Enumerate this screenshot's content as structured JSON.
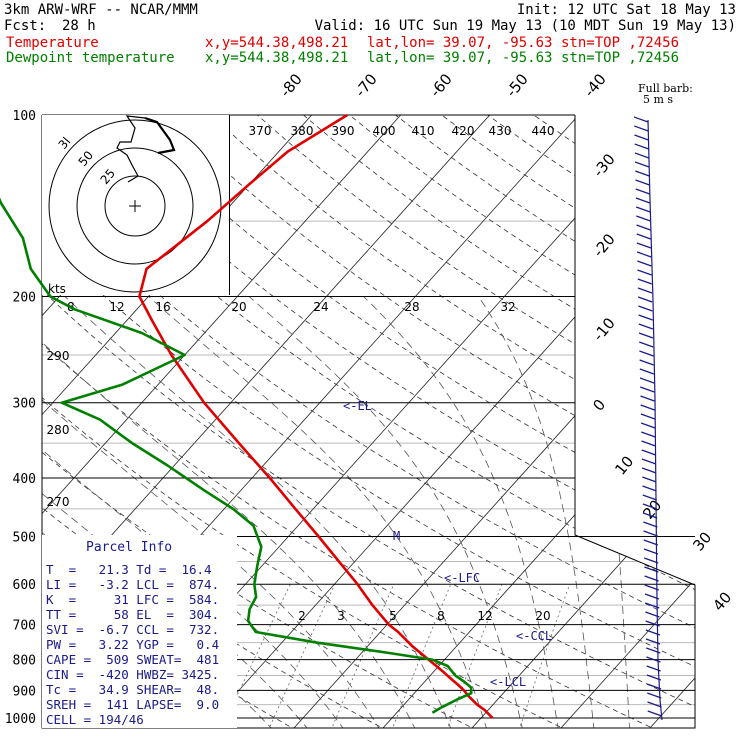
{
  "header": {
    "model": "3km ARW-WRF -- NCAR/MMM",
    "init": "Init: 12 UTC Sat 18 May 13",
    "fcst_label": "Fcst:",
    "fcst_value": "28 h",
    "valid": "Valid: 16 UTC Sun 19 May 13 (10 MDT Sun 19 May 13)",
    "temp_label": "Temperature",
    "dew_label": "Dewpoint temperature",
    "xy": "x,y=544.38,498.21",
    "latlon": "lat,lon= 39.07, -95.63",
    "stn": "stn=TOP ,72456"
  },
  "colors": {
    "temperature": "#e00000",
    "dewpoint": "#008000",
    "annot": "#1a1a8a"
  },
  "chart_data": {
    "type": "line",
    "title": "",
    "pressure_levels": [
      100,
      200,
      300,
      400,
      500,
      600,
      700,
      800,
      900,
      1000
    ],
    "isotherm_labels": [
      "-80",
      "-70",
      "-60",
      "-50",
      "-40",
      "-30",
      "-20",
      "-10",
      "0",
      "10",
      "20",
      "30",
      "40"
    ],
    "theta_labels": [
      "370",
      "380",
      "390",
      "400",
      "410",
      "420",
      "430",
      "440",
      "290",
      "280",
      "270"
    ],
    "mixing_ratio_labels": [
      "2",
      "3",
      "5",
      "8",
      "12",
      "20"
    ],
    "hodograph": {
      "unit": "kts",
      "ring_labels": [
        "3l",
        "50",
        "25"
      ],
      "speed_axis": [
        "8",
        "12",
        "16",
        "20",
        "24",
        "28",
        "32"
      ]
    },
    "wind_barb_note": [
      "Full barb:",
      "5 m s"
    ],
    "series": [
      {
        "name": "Temperature",
        "p": [
          1000,
          970,
          950,
          920,
          900,
          880,
          860,
          840,
          800,
          760,
          720,
          700,
          650,
          600,
          550,
          500,
          450,
          400,
          350,
          300,
          250,
          220,
          200,
          180,
          150,
          130,
          115,
          100
        ],
        "t": [
          21.3,
          19.6,
          18.2,
          16.4,
          15.3,
          14.0,
          12.6,
          11.2,
          8.2,
          5.0,
          2.0,
          0.2,
          -3.6,
          -7.4,
          -11.8,
          -16.6,
          -22.0,
          -28.0,
          -35.0,
          -43.0,
          -51.5,
          -57.0,
          -61.0,
          -63.0,
          -61.0,
          -60.0,
          -59.0,
          -56.0
        ]
      },
      {
        "name": "Dewpoint temperature",
        "p": [
          980,
          960,
          930,
          910,
          890,
          870,
          850,
          820,
          800,
          780,
          750,
          720,
          690,
          660,
          630,
          600,
          560,
          520,
          480,
          450,
          420,
          380,
          350,
          320,
          300,
          280,
          250,
          230,
          210,
          200,
          180,
          160,
          140,
          120,
          110,
          100
        ],
        "t": [
          14.0,
          14.5,
          15.5,
          16.4,
          15.8,
          14.4,
          12.8,
          11.0,
          8.6,
          3.0,
          -6.0,
          -14.0,
          -16.0,
          -17.0,
          -17.5,
          -19.0,
          -20.5,
          -22.0,
          -25.0,
          -29.0,
          -34.0,
          -41.0,
          -47.0,
          -53.0,
          -59.0,
          -54.0,
          -50.0,
          -57.0,
          -67.0,
          -71.0,
          -76.0,
          -80.0,
          -86.0,
          -92.0,
          -96.0,
          -96.5
        ]
      }
    ],
    "parcel_annotations": [
      "<-EL",
      "<-LFC",
      "<-CCL",
      "<-LCL",
      "M"
    ]
  },
  "parcel_info": {
    "title": "Parcel Info",
    "rows": [
      "T  =   21.3 Td =  16.4",
      "LI =   -3.2 LCL =  874.",
      "K  =     31 LFC =  584.",
      "TT =     58 EL  =  304.",
      "SVI =  -6.7 CCL =  732.",
      "PW =   3.22 YGP =   0.4",
      "CAPE =  509 SWEAT=  481",
      "CIN =  -420 HWBZ= 3425.",
      "Tc =   34.9 SHEAR=  48.",
      "SREH =  141 LAPSE=  9.0",
      "CELL = 194/46"
    ]
  }
}
